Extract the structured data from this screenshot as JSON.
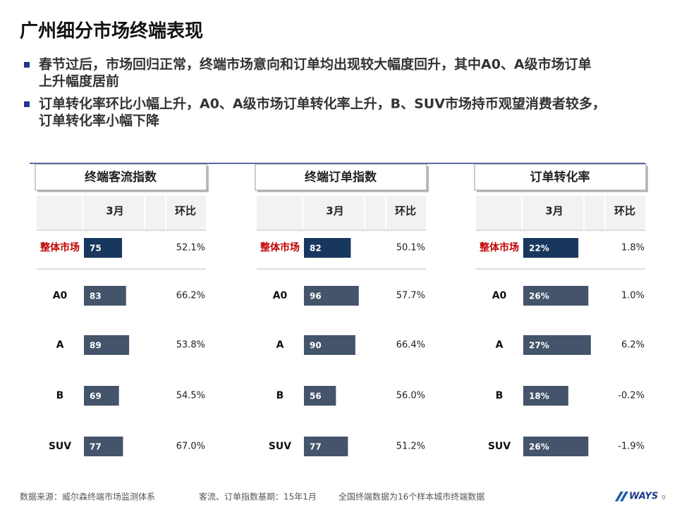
{
  "title": "广州细分市场终端表现",
  "bullets": [
    [
      "春节过后，市场回归正常，终端市场意向和订单均出现较大幅度回升，其中A0、A级市场订单",
      "上升幅度居前"
    ],
    [
      "订单转化率环比小幅上升，A0、A级市场订单转化率上升，B、SUV市场持币观望消费者较多，",
      "订单转化率小幅下降"
    ]
  ],
  "chart_data": [
    {
      "type": "bar",
      "title": "终端客流指数",
      "columns": [
        "3月",
        "环比"
      ],
      "categories": [
        "整体市场",
        "A0",
        "A",
        "B",
        "SUV"
      ],
      "values": [
        75,
        83,
        89,
        69,
        77
      ],
      "changes": [
        "52.1%",
        "66.2%",
        "53.8%",
        "54.5%",
        "67.0%"
      ],
      "color": "#44546a",
      "highlight_color": "#17375e",
      "highlight_label_color": "#c00000"
    },
    {
      "type": "bar",
      "title": "终端订单指数",
      "columns": [
        "3月",
        "环比"
      ],
      "categories": [
        "整体市场",
        "A0",
        "A",
        "B",
        "SUV"
      ],
      "values": [
        82,
        96,
        90,
        56,
        77
      ],
      "changes": [
        "50.1%",
        "57.7%",
        "66.4%",
        "56.0%",
        "51.2%"
      ],
      "color": "#44546a",
      "highlight_color": "#17375e",
      "highlight_label_color": "#c00000"
    },
    {
      "type": "bar",
      "title": "订单转化率",
      "columns": [
        "3月",
        "环比"
      ],
      "categories": [
        "整体市场",
        "A0",
        "A",
        "B",
        "SUV"
      ],
      "values": [
        22,
        26,
        27,
        18,
        26
      ],
      "value_labels": [
        "22%",
        "26%",
        "27%",
        "18%",
        "26%"
      ],
      "changes": [
        "1.8%",
        "1.0%",
        "6.2%",
        "-0.2%",
        "-1.9%"
      ],
      "color": "#44546a",
      "highlight_color": "#17375e",
      "highlight_label_color": "#c00000"
    }
  ],
  "footer": {
    "notes": [
      "数据来源：威尔森终端市场监测体系",
      "客流、订单指数基期：15年1月",
      "全国终端数据为16个样本城市终端数据"
    ],
    "logo": "WAYS",
    "page": "9"
  }
}
